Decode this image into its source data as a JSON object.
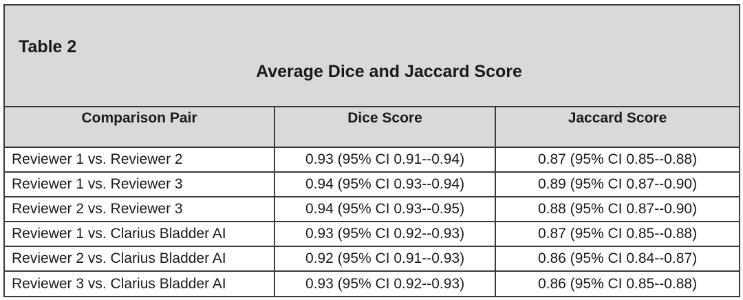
{
  "table_label": "Table 2",
  "table_title": "Average Dice and Jaccard Score",
  "headers": [
    "Comparison Pair",
    "Dice Score",
    "Jaccard Score"
  ],
  "rows": [
    [
      "Reviewer 1 vs. Reviewer 2",
      "0.93 (95% CI 0.91--0.94)",
      "0.87 (95% CI 0.85--0.88)"
    ],
    [
      "Reviewer 1 vs. Reviewer 3",
      "0.94 (95% CI 0.93--0.94)",
      "0.89 (95% CI 0.87--0.90)"
    ],
    [
      "Reviewer 2 vs. Reviewer 3",
      "0.94 (95% CI 0.93--0.95)",
      "0.88 (95% CI 0.87--0.90)"
    ],
    [
      "Reviewer 1 vs. Clarius Bladder AI",
      "0.93 (95% CI 0.92--0.93)",
      "0.87 (95% CI 0.85--0.88)"
    ],
    [
      "Reviewer 2 vs. Clarius Bladder AI",
      "0.92 (95% CI 0.91--0.93)",
      "0.86 (95% CI 0.84--0.87)"
    ],
    [
      "Reviewer 3 vs. Clarius Bladder AI",
      "0.93 (95% CI 0.92--0.93)",
      "0.86 (95% CI 0.85--0.88)"
    ]
  ]
}
